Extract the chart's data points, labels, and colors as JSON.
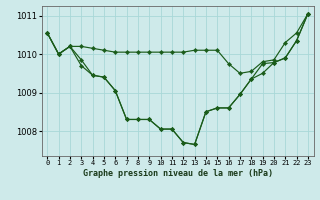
{
  "title": "Graphe pression niveau de la mer (hPa)",
  "background_color": "#ceeaea",
  "line_color": "#1a5c1a",
  "grid_color": "#a8d8d8",
  "xlim": [
    -0.5,
    23.5
  ],
  "ylim": [
    1007.35,
    1011.25
  ],
  "yticks": [
    1008,
    1009,
    1010,
    1011
  ],
  "xtick_labels": [
    "0",
    "1",
    "2",
    "3",
    "4",
    "5",
    "6",
    "7",
    "8",
    "9",
    "10",
    "11",
    "12",
    "13",
    "14",
    "15",
    "16",
    "17",
    "18",
    "19",
    "20",
    "21",
    "22",
    "23"
  ],
  "line1_top": [
    1010.55,
    1010.0,
    1010.2,
    1010.2,
    1010.15,
    1010.1,
    1010.05,
    1010.05,
    1010.05,
    1010.05,
    1010.05,
    1010.05,
    1010.05,
    1010.1,
    1010.1,
    1010.1,
    1009.75,
    1009.5,
    1009.55,
    1009.8,
    1009.85,
    1010.3,
    1010.55,
    1011.05
  ],
  "line2_mid": [
    1010.55,
    1010.0,
    1010.2,
    1009.85,
    1009.45,
    1009.4,
    1009.05,
    1008.3,
    1008.3,
    1008.3,
    1008.05,
    1008.05,
    1007.7,
    1007.65,
    1008.5,
    1008.6,
    1008.6,
    1008.95,
    1009.35,
    1009.75,
    1009.78,
    1009.9,
    1010.35,
    1011.05
  ],
  "line3_bot": [
    1010.55,
    1010.0,
    1010.2,
    1009.7,
    1009.45,
    1009.4,
    1009.05,
    1008.3,
    1008.3,
    1008.3,
    1008.05,
    1008.05,
    1007.7,
    1007.65,
    1008.5,
    1008.6,
    1008.6,
    1008.95,
    1009.35,
    1009.5,
    1009.78,
    1009.9,
    1010.35,
    1011.05
  ]
}
